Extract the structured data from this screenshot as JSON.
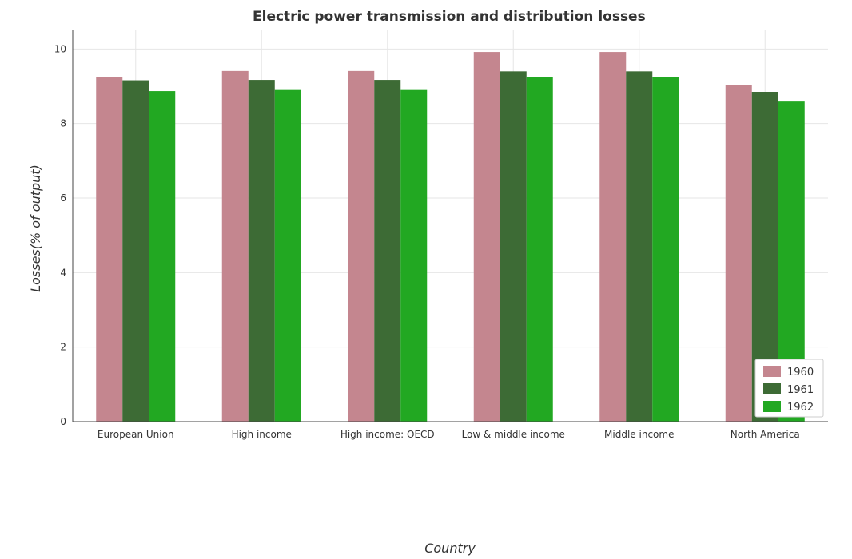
{
  "chart_data": {
    "type": "bar",
    "title": "Electric power transmission and distribution losses",
    "xlabel": "Country",
    "ylabel": "Losses(% of output)",
    "ylim": [
      0,
      10.5
    ],
    "yticks": [
      0,
      2,
      4,
      6,
      8,
      10
    ],
    "grid": true,
    "legend_position": "bottom-right",
    "categories": [
      "European Union",
      "High income",
      "High income: OECD",
      "Low & middle income",
      "Middle income",
      "North America"
    ],
    "series": [
      {
        "name": "1960",
        "color": "#c4868f",
        "values": [
          9.25,
          9.41,
          9.41,
          9.92,
          9.92,
          9.03
        ]
      },
      {
        "name": "1961",
        "color": "#3d6b35",
        "values": [
          9.16,
          9.17,
          9.17,
          9.4,
          9.4,
          8.85
        ]
      },
      {
        "name": "1962",
        "color": "#22a822",
        "values": [
          8.87,
          8.9,
          8.9,
          9.24,
          9.24,
          8.59
        ]
      }
    ]
  }
}
